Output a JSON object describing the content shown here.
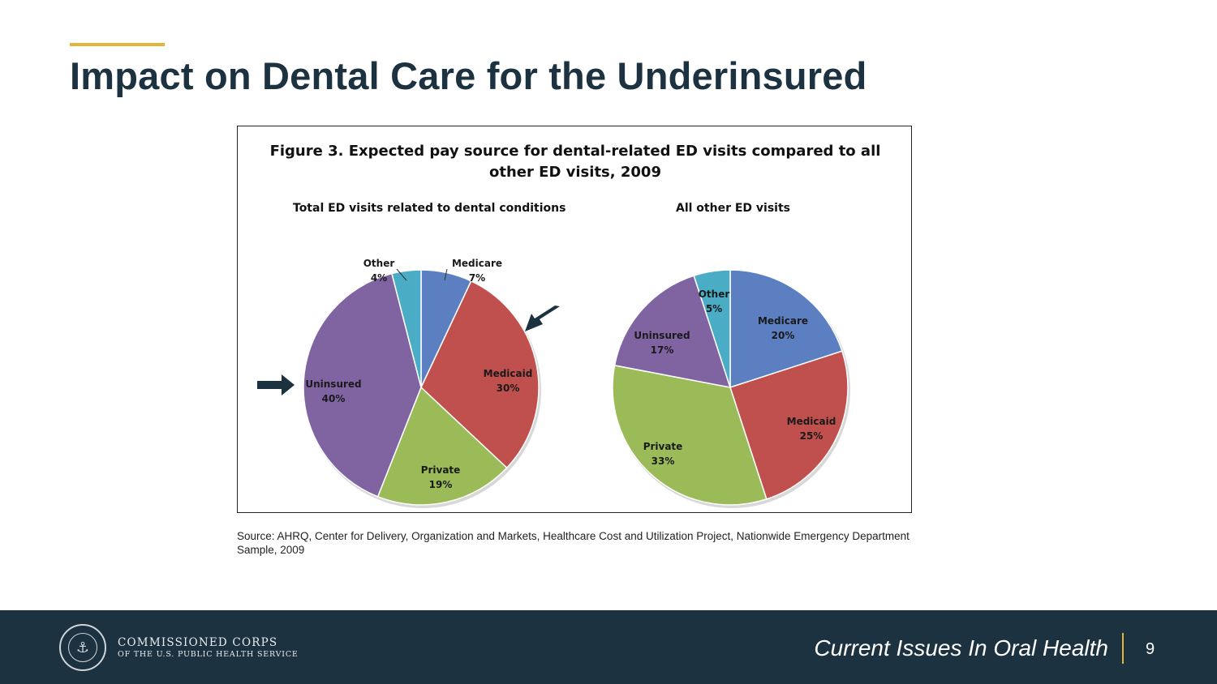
{
  "slide": {
    "title": "Impact on Dental Care for the Underinsured",
    "source": "Source: AHRQ, Center for Delivery, Organization and Markets, Healthcare Cost and Utilization Project, Nationwide Emergency Department Sample, 2009"
  },
  "footer": {
    "org_name": "COMMISSIONED CORPS",
    "org_sub": "OF THE U.S. PUBLIC HEALTH SERVICE",
    "deck_title": "Current Issues In Oral Health",
    "page_number": "9"
  },
  "chart_data": {
    "title_line1": "Figure 3. Expected pay source for dental-related ED visits compared to all",
    "title_line2": "other ED visits, 2009",
    "charts": [
      {
        "type": "pie",
        "title": "Total ED visits related to dental conditions",
        "slices": [
          {
            "label": "Medicare",
            "value": 7,
            "display": "7%",
            "color": "#5b7fc1"
          },
          {
            "label": "Medicaid",
            "value": 30,
            "display": "30%",
            "color": "#c0504d"
          },
          {
            "label": "Private",
            "value": 19,
            "display": "19%",
            "color": "#9bbb59"
          },
          {
            "label": "Uninsured",
            "value": 40,
            "display": "40%",
            "color": "#8064a2"
          },
          {
            "label": "Other",
            "value": 4,
            "display": "4%",
            "color": "#4bacc6"
          }
        ],
        "highlighted": [
          "Medicaid",
          "Uninsured"
        ]
      },
      {
        "type": "pie",
        "title": "All other ED visits",
        "slices": [
          {
            "label": "Medicare",
            "value": 20,
            "display": "20%",
            "color": "#5b7fc1"
          },
          {
            "label": "Medicaid",
            "value": 25,
            "display": "25%",
            "color": "#c0504d"
          },
          {
            "label": "Private",
            "value": 33,
            "display": "33%",
            "color": "#9bbb59"
          },
          {
            "label": "Uninsured",
            "value": 17,
            "display": "17%",
            "color": "#8064a2"
          },
          {
            "label": "Other",
            "value": 5,
            "display": "5%",
            "color": "#4bacc6"
          }
        ]
      }
    ]
  }
}
